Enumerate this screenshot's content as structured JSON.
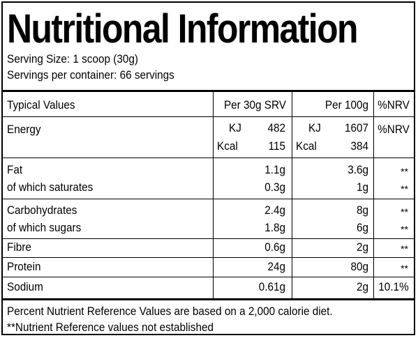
{
  "title": "Nutritional Information",
  "serving_size": "Serving Size: 1 scoop (30g)",
  "servings_per_container": "Servings per container: 66 servings",
  "table": {
    "headers": [
      "Typical Values",
      "Per 30g SRV",
      "Per 100g",
      "%NRV"
    ],
    "energy": {
      "label": "Energy",
      "kj_unit": "KJ",
      "kcal_unit": "Kcal",
      "srv_kj": "482",
      "srv_kcal": "115",
      "g100_kj": "1607",
      "g100_kcal": "384",
      "nrv": "%NRV"
    },
    "rows": [
      {
        "label": "Fat",
        "srv": "1.1g",
        "g100": "3.6g",
        "nrv": "**"
      },
      {
        "label": "of which saturates",
        "srv": "0.3g",
        "g100": "1g",
        "nrv": "**"
      },
      {
        "label": "Carbohydrates",
        "srv": "2.4g",
        "g100": "8g",
        "nrv": "**"
      },
      {
        "label": "of which sugars",
        "srv": "1.8g",
        "g100": "6g",
        "nrv": "**"
      },
      {
        "label": "Fibre",
        "srv": "0.6g",
        "g100": "2g",
        "nrv": "**"
      },
      {
        "label": "Protein",
        "srv": "24g",
        "g100": "80g",
        "nrv": "**"
      },
      {
        "label": "Sodium",
        "srv": "0.61g",
        "g100": "2g",
        "nrv": "10.1%"
      }
    ]
  },
  "footnotes": [
    "Percent Nutrient Reference Values are based on a 2,000 calorie diet.",
    "**Nutrient Reference values not established"
  ]
}
